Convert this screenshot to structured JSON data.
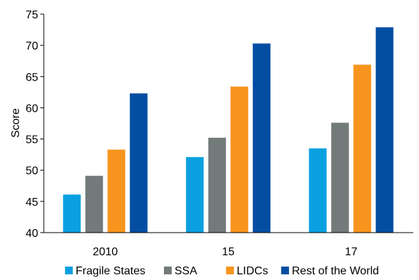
{
  "chart_data": {
    "type": "bar",
    "ylabel": "Score",
    "xlabel": "",
    "ylim": [
      40,
      75
    ],
    "yticks": [
      40,
      45,
      50,
      55,
      60,
      65,
      70,
      75
    ],
    "categories": [
      "2010",
      "15",
      "17"
    ],
    "series": [
      {
        "name": "Fragile States",
        "color": "#0aa0e0",
        "values": [
          46.1,
          52.1,
          53.5
        ]
      },
      {
        "name": "SSA",
        "color": "#737a7a",
        "values": [
          49.1,
          55.2,
          57.6
        ]
      },
      {
        "name": "LIDCs",
        "color": "#f7941d",
        "values": [
          53.3,
          63.4,
          66.9
        ]
      },
      {
        "name": "Rest of the World",
        "color": "#034ea2",
        "values": [
          62.3,
          70.3,
          72.9
        ]
      }
    ],
    "legend_position": "bottom",
    "grid": false
  }
}
